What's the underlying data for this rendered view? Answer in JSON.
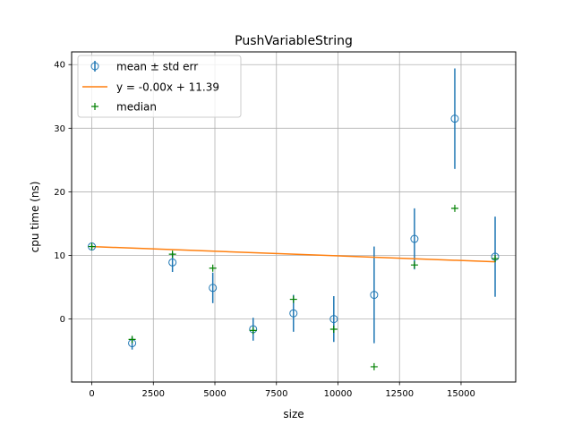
{
  "chart_data": {
    "type": "scatter",
    "title": "PushVariableString",
    "xlabel": "size",
    "ylabel": "cpu time (ns)",
    "xlim": [
      -820,
      17220
    ],
    "ylim": [
      -9.9,
      42.0
    ],
    "xticks": [
      0,
      2500,
      5000,
      7500,
      10000,
      12500,
      15000
    ],
    "xtick_labels": [
      "0",
      "2500",
      "5000",
      "7500",
      "10000",
      "12500",
      "15000"
    ],
    "yticks": [
      0,
      10,
      20,
      30,
      40
    ],
    "ytick_labels": [
      "0",
      "10",
      "20",
      "30",
      "40"
    ],
    "grid": true,
    "legend_position": "top-left",
    "colors": {
      "mean": "#1f77b4",
      "fit": "#ff7f0e",
      "median": "#008000",
      "grid": "#b0b0b0"
    },
    "series": [
      {
        "name": "mean ± std err",
        "kind": "errorbar",
        "points": [
          {
            "x": 0,
            "y": 11.4,
            "err": 0.3
          },
          {
            "x": 1638,
            "y": -3.8,
            "err": 1.0
          },
          {
            "x": 3277,
            "y": 8.9,
            "err": 1.5
          },
          {
            "x": 4915,
            "y": 4.9,
            "err": 2.4
          },
          {
            "x": 6554,
            "y": -1.6,
            "err": 1.8
          },
          {
            "x": 8192,
            "y": 0.9,
            "err": 2.9
          },
          {
            "x": 9830,
            "y": 0.0,
            "err": 3.6
          },
          {
            "x": 11469,
            "y": 3.8,
            "err": 7.6
          },
          {
            "x": 13107,
            "y": 12.6,
            "err": 4.8
          },
          {
            "x": 14746,
            "y": 31.5,
            "err": 7.9
          },
          {
            "x": 16384,
            "y": 9.8,
            "err": 6.3
          }
        ]
      },
      {
        "name": "y = -0.00x + 11.39",
        "kind": "line",
        "x": [
          0,
          16384
        ],
        "y": [
          11.39,
          9.0
        ]
      },
      {
        "name": "median",
        "kind": "marker",
        "points": [
          {
            "x": 0,
            "y": 11.4
          },
          {
            "x": 1638,
            "y": -3.2
          },
          {
            "x": 3277,
            "y": 10.2
          },
          {
            "x": 4915,
            "y": 8.0
          },
          {
            "x": 6554,
            "y": -1.8
          },
          {
            "x": 8192,
            "y": 3.1
          },
          {
            "x": 9830,
            "y": -1.6
          },
          {
            "x": 11469,
            "y": -7.5
          },
          {
            "x": 13107,
            "y": 8.5
          },
          {
            "x": 14746,
            "y": 17.4
          },
          {
            "x": 16384,
            "y": 9.5
          }
        ]
      }
    ]
  }
}
